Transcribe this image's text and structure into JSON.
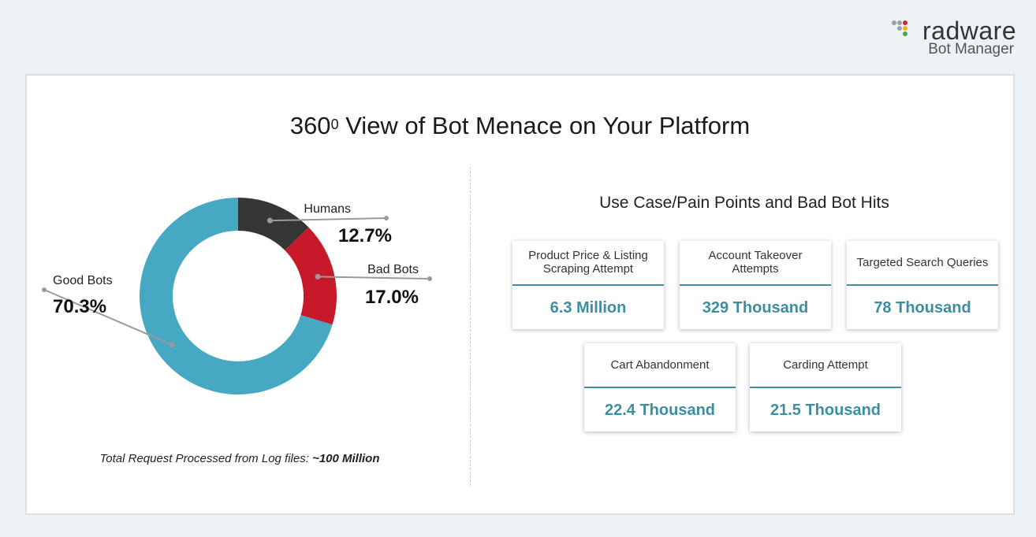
{
  "brand": {
    "name": "radware",
    "product": "Bot Manager",
    "dot_colors": [
      "#9aa0a6",
      "#9aa0a6",
      "#d7282f",
      "#9aa0a6",
      "#f2b51d",
      "#4aa84a"
    ]
  },
  "title": {
    "text": "360",
    "superscript": "0",
    "rest": " View of Bot Menace on Your Platform"
  },
  "chart_data": {
    "type": "pie",
    "donut": true,
    "title": "",
    "slices": [
      {
        "label": "Humans",
        "value": 12.7,
        "display": "12.7%",
        "color": "#363636"
      },
      {
        "label": "Bad Bots",
        "value": 17.0,
        "display": "17.0%",
        "color": "#c8192b"
      },
      {
        "label": "Good Bots",
        "value": 70.3,
        "display": "70.3%",
        "color": "#46a8c3"
      }
    ]
  },
  "footnote": {
    "text": "Total Request Processed from Log files: ",
    "emphasis": "~100 Million"
  },
  "use_cases": {
    "title": "Use Case/Pain Points and Bad Bot Hits",
    "cards": [
      {
        "label": "Product Price & Listing Scraping Attempt",
        "value": "6.3 Million"
      },
      {
        "label": "Account Takeover Attempts",
        "value": "329 Thousand"
      },
      {
        "label": "Targeted Search Queries",
        "value": "78 Thousand"
      },
      {
        "label": "Cart Abandonment",
        "value": "22.4 Thousand"
      },
      {
        "label": "Carding Attempt",
        "value": "21.5 Thousand"
      }
    ],
    "accent_color": "#3d8ea0"
  }
}
